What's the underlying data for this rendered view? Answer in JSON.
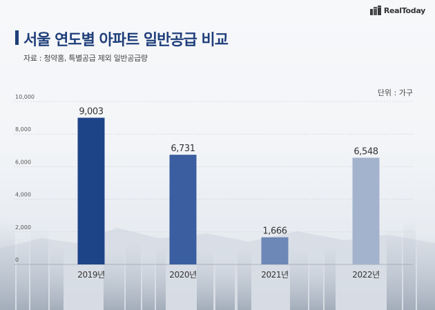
{
  "header": {
    "title": "서울 연도별 아파트 일반공급 비교",
    "source": "자료 : 청약홈, 특별공급 제외 일반공급량",
    "unit": "단위 : 가구",
    "logo_text": "RealToday"
  },
  "colors": {
    "title": "#1f3f7a",
    "bars": [
      "#1e4488",
      "#3a5e9f",
      "#6d87b7",
      "#a3b3cd"
    ]
  },
  "chart_data": {
    "type": "bar",
    "categories": [
      "2019년",
      "2020년",
      "2021년",
      "2022년"
    ],
    "values": [
      9003,
      6731,
      1666,
      6548
    ],
    "data_labels": [
      "9,003",
      "6,731",
      "1,666",
      "6,548"
    ],
    "y_ticks": [
      0,
      2000,
      4000,
      6000,
      8000,
      10000
    ],
    "y_tick_labels": [
      "0",
      "2,000",
      "4,000",
      "6,000",
      "8,000",
      "10,000"
    ],
    "ylim": [
      0,
      10000
    ],
    "grid": true,
    "title": "서울 연도별 아파트 일반공급 비교",
    "xlabel": "",
    "ylabel": ""
  }
}
